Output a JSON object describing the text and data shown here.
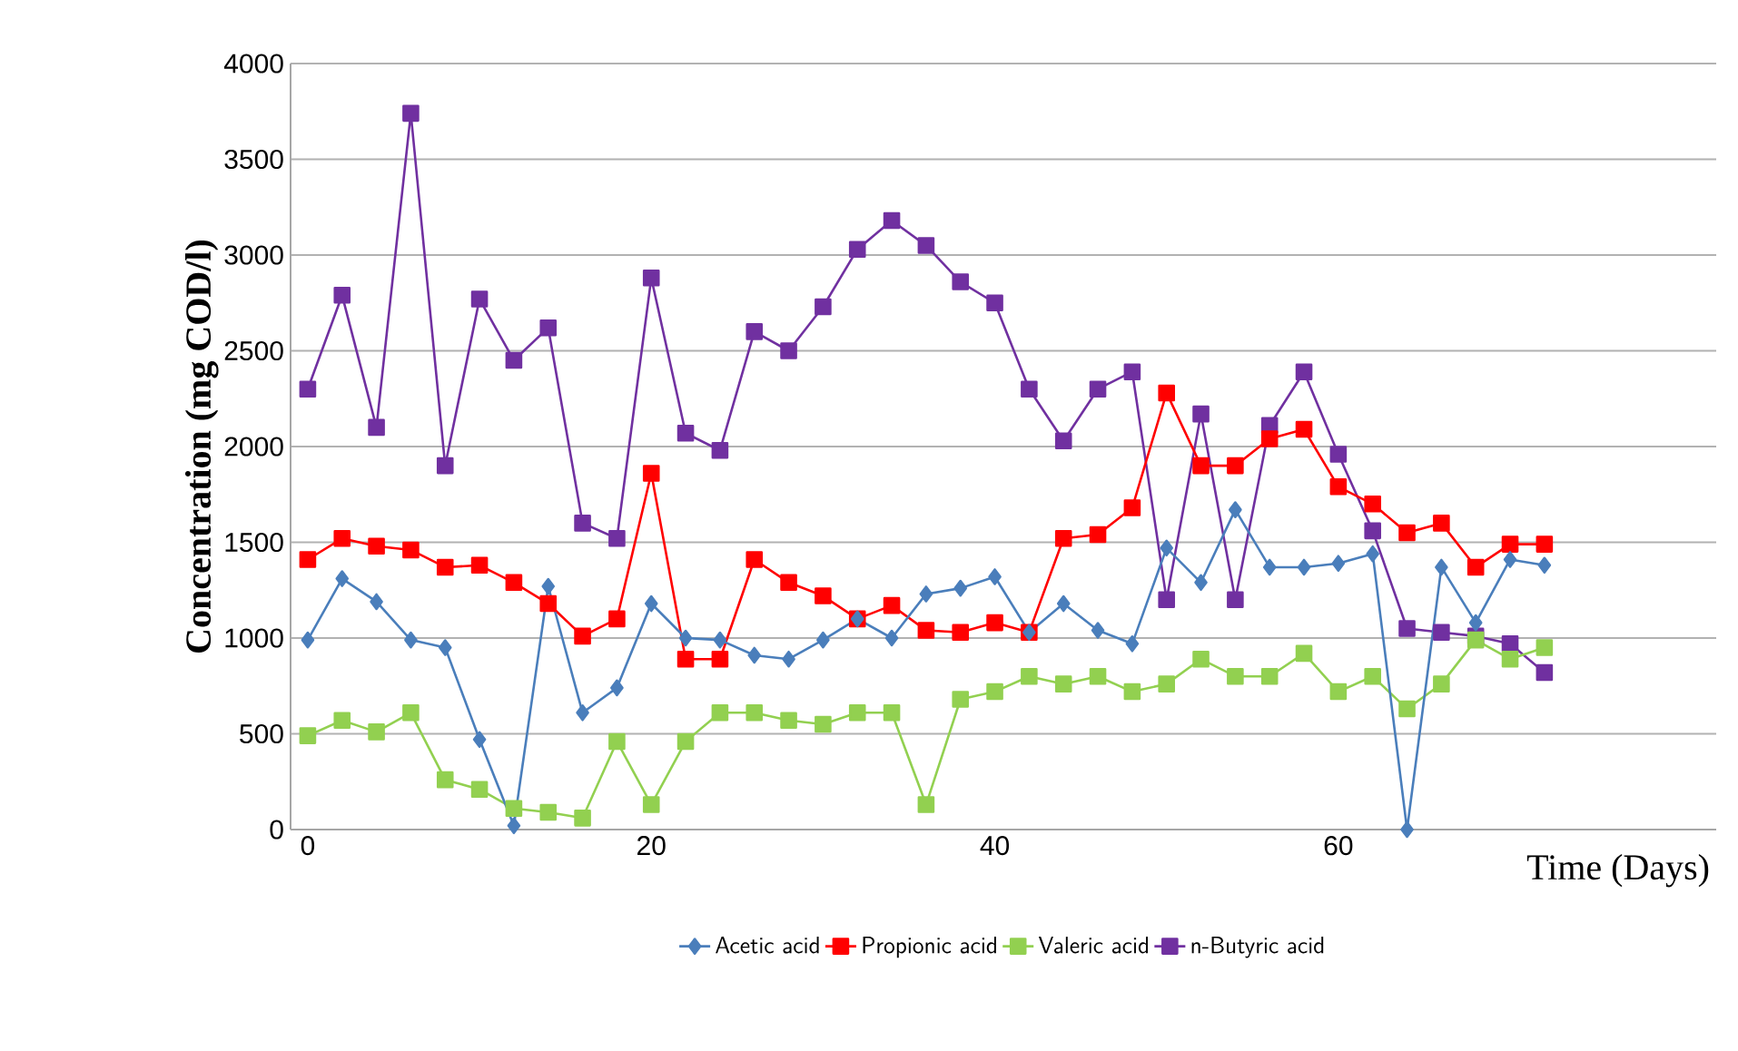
{
  "chart_data": {
    "type": "line",
    "xlabel": "Time (Days)",
    "ylabel": "Concentration  (mg COD/l)",
    "x": [
      0,
      2,
      4,
      6,
      8,
      10,
      12,
      14,
      16,
      18,
      20,
      22,
      24,
      26,
      28,
      30,
      32,
      34,
      36,
      38,
      40,
      42,
      44,
      46,
      48,
      50,
      52,
      54,
      56,
      58,
      60,
      62,
      64,
      66,
      68,
      70,
      72
    ],
    "series": [
      {
        "name": "Acetic acid",
        "color": "#4a7ebb",
        "marker": "diamond",
        "values": [
          990,
          1310,
          1190,
          990,
          950,
          470,
          20,
          1270,
          610,
          740,
          1180,
          1000,
          990,
          910,
          890,
          990,
          1100,
          1000,
          1230,
          1260,
          1320,
          1030,
          1180,
          1040,
          970,
          1470,
          1290,
          1670,
          1370,
          1370,
          1390,
          1440,
          0,
          1370,
          1080,
          1410,
          1380
        ]
      },
      {
        "name": "Propionic acid",
        "color": "#ff0000",
        "marker": "square",
        "values": [
          1410,
          1520,
          1480,
          1460,
          1370,
          1380,
          1290,
          1180,
          1010,
          1100,
          1860,
          890,
          890,
          1410,
          1290,
          1220,
          1100,
          1170,
          1040,
          1030,
          1080,
          1030,
          1520,
          1540,
          1680,
          2280,
          1900,
          1900,
          2040,
          2090,
          1790,
          1700,
          1550,
          1600,
          1370,
          1490,
          1490
        ]
      },
      {
        "name": "Valeric acid",
        "color": "#92d050",
        "marker": "square",
        "values": [
          490,
          570,
          510,
          610,
          260,
          210,
          110,
          90,
          60,
          460,
          130,
          460,
          610,
          610,
          570,
          550,
          610,
          610,
          130,
          680,
          720,
          800,
          760,
          800,
          720,
          760,
          890,
          800,
          800,
          920,
          720,
          800,
          630,
          760,
          990,
          890,
          950
        ]
      },
      {
        "name": "n-Butyric acid",
        "color": "#7030a0",
        "marker": "square",
        "values": [
          2300,
          2790,
          2100,
          3740,
          1900,
          2770,
          2450,
          2620,
          1600,
          1520,
          2880,
          2070,
          1980,
          2600,
          2500,
          2730,
          3030,
          3180,
          3050,
          2860,
          2750,
          2300,
          2030,
          2300,
          2390,
          1200,
          2170,
          1200,
          2110,
          2390,
          1960,
          1560,
          1050,
          1030,
          1010,
          970,
          820
        ]
      }
    ],
    "xlim": [
      -1,
      82
    ],
    "xticks": [
      0,
      20,
      40,
      60
    ],
    "ylim": [
      0,
      4000
    ],
    "yticks": [
      0,
      500,
      1000,
      1500,
      2000,
      2500,
      3000,
      3500,
      4000
    ],
    "grid": "y",
    "legend": "bottom",
    "line_style": "solid"
  }
}
